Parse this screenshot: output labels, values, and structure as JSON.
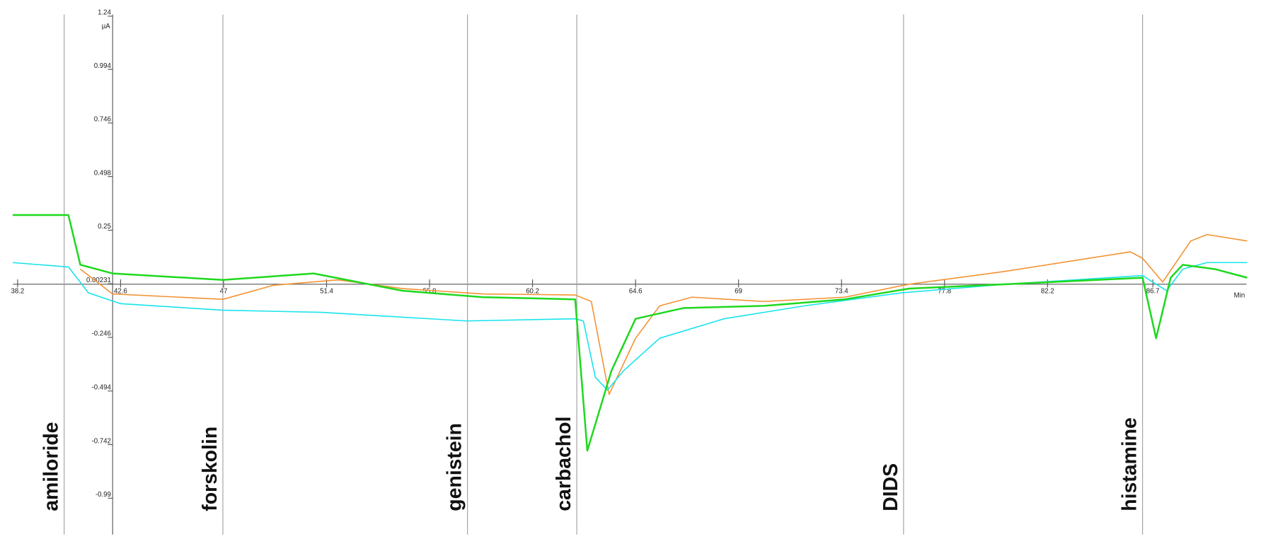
{
  "chart_data": {
    "type": "line",
    "y_unit": "µA",
    "x_unit": "Min",
    "xlim": [
      38,
      90.7
    ],
    "ylim": [
      -1.158,
      1.248
    ],
    "xticks": [
      38.2,
      42.6,
      47,
      51.4,
      55.8,
      60.2,
      64.6,
      69,
      73.4,
      77.8,
      82.2,
      86.7
    ],
    "yticks": [
      1.24,
      0.994,
      0.746,
      0.498,
      0.25,
      0.00231,
      -0.246,
      -0.494,
      -0.742,
      -0.99
    ],
    "annotations": [
      {
        "label": "amiloride",
        "x": 40.19
      },
      {
        "label": "forskolin",
        "x": 46.97
      },
      {
        "label": "genistein",
        "x": 57.42
      },
      {
        "label": "carbachol",
        "x": 62.09
      },
      {
        "label": "DIDS",
        "x": 76.05
      },
      {
        "label": "histamine",
        "x": 86.26
      }
    ],
    "series": [
      {
        "color": "#f39233",
        "x": [
          40.88,
          42.26,
          46.97,
          49.13,
          51.88,
          54.63,
          58.07,
          62.02,
          62.71,
          63.47,
          64.6,
          65.63,
          67.01,
          70.1,
          73.54,
          76.29,
          80.41,
          85.74,
          86.26,
          87.12,
          88.32,
          89.01,
          90.73
        ],
        "values": [
          0.07,
          -0.045,
          -0.07,
          -0.005,
          0.02,
          -0.02,
          -0.045,
          -0.05,
          -0.08,
          -0.51,
          -0.25,
          -0.1,
          -0.06,
          -0.08,
          -0.06,
          0.0,
          0.06,
          0.15,
          0.12,
          0.01,
          0.2,
          0.23,
          0.2
        ]
      },
      {
        "color": "#19e3ec",
        "x": [
          37.99,
          40.37,
          41.23,
          42.6,
          46.97,
          51.19,
          57.38,
          62.02,
          62.37,
          62.88,
          63.4,
          64.09,
          65.63,
          68.38,
          71.82,
          75.94,
          80.41,
          86.26,
          87.29,
          87.98,
          89.01,
          90.73
        ],
        "values": [
          0.1,
          0.08,
          -0.04,
          -0.09,
          -0.12,
          -0.13,
          -0.17,
          -0.16,
          -0.17,
          -0.43,
          -0.49,
          -0.4,
          -0.25,
          -0.16,
          -0.1,
          -0.04,
          0.0,
          0.04,
          -0.03,
          0.07,
          0.1,
          0.1
        ]
      },
      {
        "color": "#1ed81e",
        "x": [
          37.99,
          40.37,
          40.88,
          42.26,
          46.97,
          50.85,
          54.63,
          58.07,
          62.02,
          62.54,
          63.57,
          64.6,
          66.66,
          70.1,
          73.54,
          76.29,
          80.41,
          86.26,
          86.84,
          87.46,
          87.98,
          89.35,
          90.73
        ],
        "values": [
          0.32,
          0.32,
          0.09,
          0.05,
          0.02,
          0.05,
          -0.03,
          -0.06,
          -0.07,
          -0.77,
          -0.4,
          -0.16,
          -0.11,
          -0.1,
          -0.07,
          -0.02,
          0.0,
          0.03,
          -0.25,
          0.03,
          0.09,
          0.07,
          0.03
        ]
      }
    ]
  }
}
